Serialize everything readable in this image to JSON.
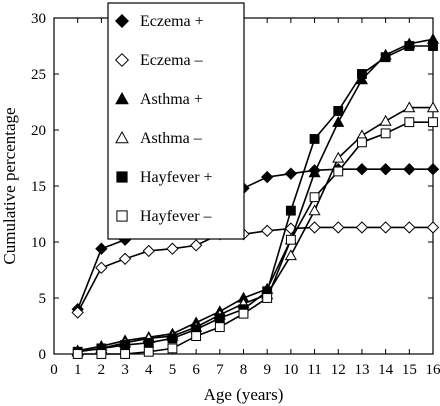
{
  "chart_data": {
    "type": "line",
    "xlabel": "Age (years)",
    "ylabel": "Cumulative percentage",
    "xlim": [
      0,
      16
    ],
    "ylim": [
      0,
      30
    ],
    "x_ticks": [
      "0",
      "1",
      "2",
      "3",
      "4",
      "5",
      "6",
      "7",
      "8",
      "9",
      "10",
      "11",
      "12",
      "13",
      "14",
      "15",
      "16"
    ],
    "y_ticks": [
      "0",
      "5",
      "10",
      "15",
      "20",
      "25",
      "30"
    ],
    "grid": false,
    "legend_position": "top-center",
    "x": [
      1,
      2,
      3,
      4,
      5,
      6,
      7,
      8,
      9,
      10,
      11,
      12,
      13,
      14,
      15,
      16
    ],
    "series": [
      {
        "name": "Eczema +",
        "marker": "diamond",
        "filled": true,
        "values": [
          4.0,
          9.4,
          10.2,
          12.0,
          12.6,
          13.2,
          14.4,
          14.8,
          15.8,
          16.1,
          16.4,
          16.5,
          16.5,
          16.5,
          16.5,
          16.5
        ]
      },
      {
        "name": "Eczema –",
        "marker": "diamond",
        "filled": false,
        "values": [
          3.7,
          7.7,
          8.5,
          9.2,
          9.4,
          9.7,
          10.7,
          10.7,
          11.0,
          11.2,
          11.3,
          11.3,
          11.3,
          11.3,
          11.3,
          11.3
        ]
      },
      {
        "name": "Asthma +",
        "marker": "triangle",
        "filled": true,
        "values": [
          0.3,
          0.7,
          1.2,
          1.5,
          1.8,
          2.8,
          3.8,
          5.0,
          5.8,
          10.2,
          16.2,
          20.7,
          24.5,
          26.7,
          27.7,
          28.1
        ]
      },
      {
        "name": "Asthma –",
        "marker": "triangle",
        "filled": false,
        "values": [
          0.2,
          0.5,
          1.0,
          1.4,
          1.6,
          2.4,
          3.5,
          4.5,
          5.3,
          8.8,
          12.8,
          17.5,
          19.5,
          20.8,
          22.0,
          22.0
        ]
      },
      {
        "name": "Hayfever +",
        "marker": "square",
        "filled": true,
        "values": [
          0.2,
          0.5,
          0.8,
          1.0,
          1.4,
          2.2,
          3.2,
          4.0,
          5.6,
          12.8,
          19.2,
          21.7,
          25.0,
          26.5,
          27.5,
          27.5
        ]
      },
      {
        "name": "Hayfever –",
        "marker": "square",
        "filled": false,
        "values": [
          0.0,
          0.0,
          0.0,
          0.2,
          0.5,
          1.6,
          2.4,
          3.6,
          5.0,
          10.2,
          14.0,
          16.3,
          18.9,
          19.7,
          20.7,
          20.7
        ]
      }
    ]
  }
}
